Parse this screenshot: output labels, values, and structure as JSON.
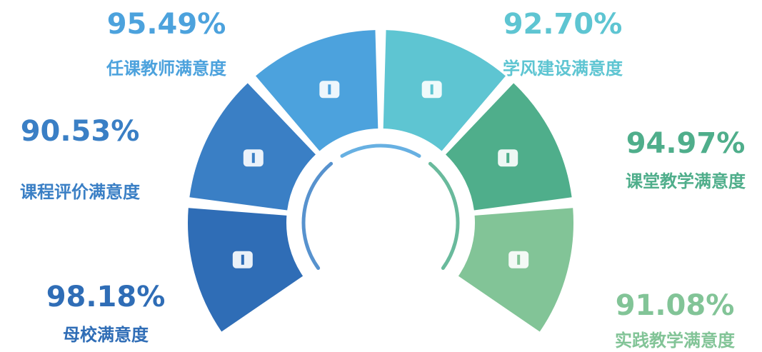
{
  "items": [
    {
      "value": "98.18%",
      "label": "母校满意度"
    },
    {
      "value": "90.53%",
      "label": "课程评价满意度"
    },
    {
      "value": "95.49%",
      "label": "任课教师满意度"
    },
    {
      "value": "92.70%",
      "label": "学风建设满意度"
    },
    {
      "value": "94.97%",
      "label": "课堂教学满意度"
    },
    {
      "value": "91.08%",
      "label": "实践教学满意度"
    }
  ]
}
